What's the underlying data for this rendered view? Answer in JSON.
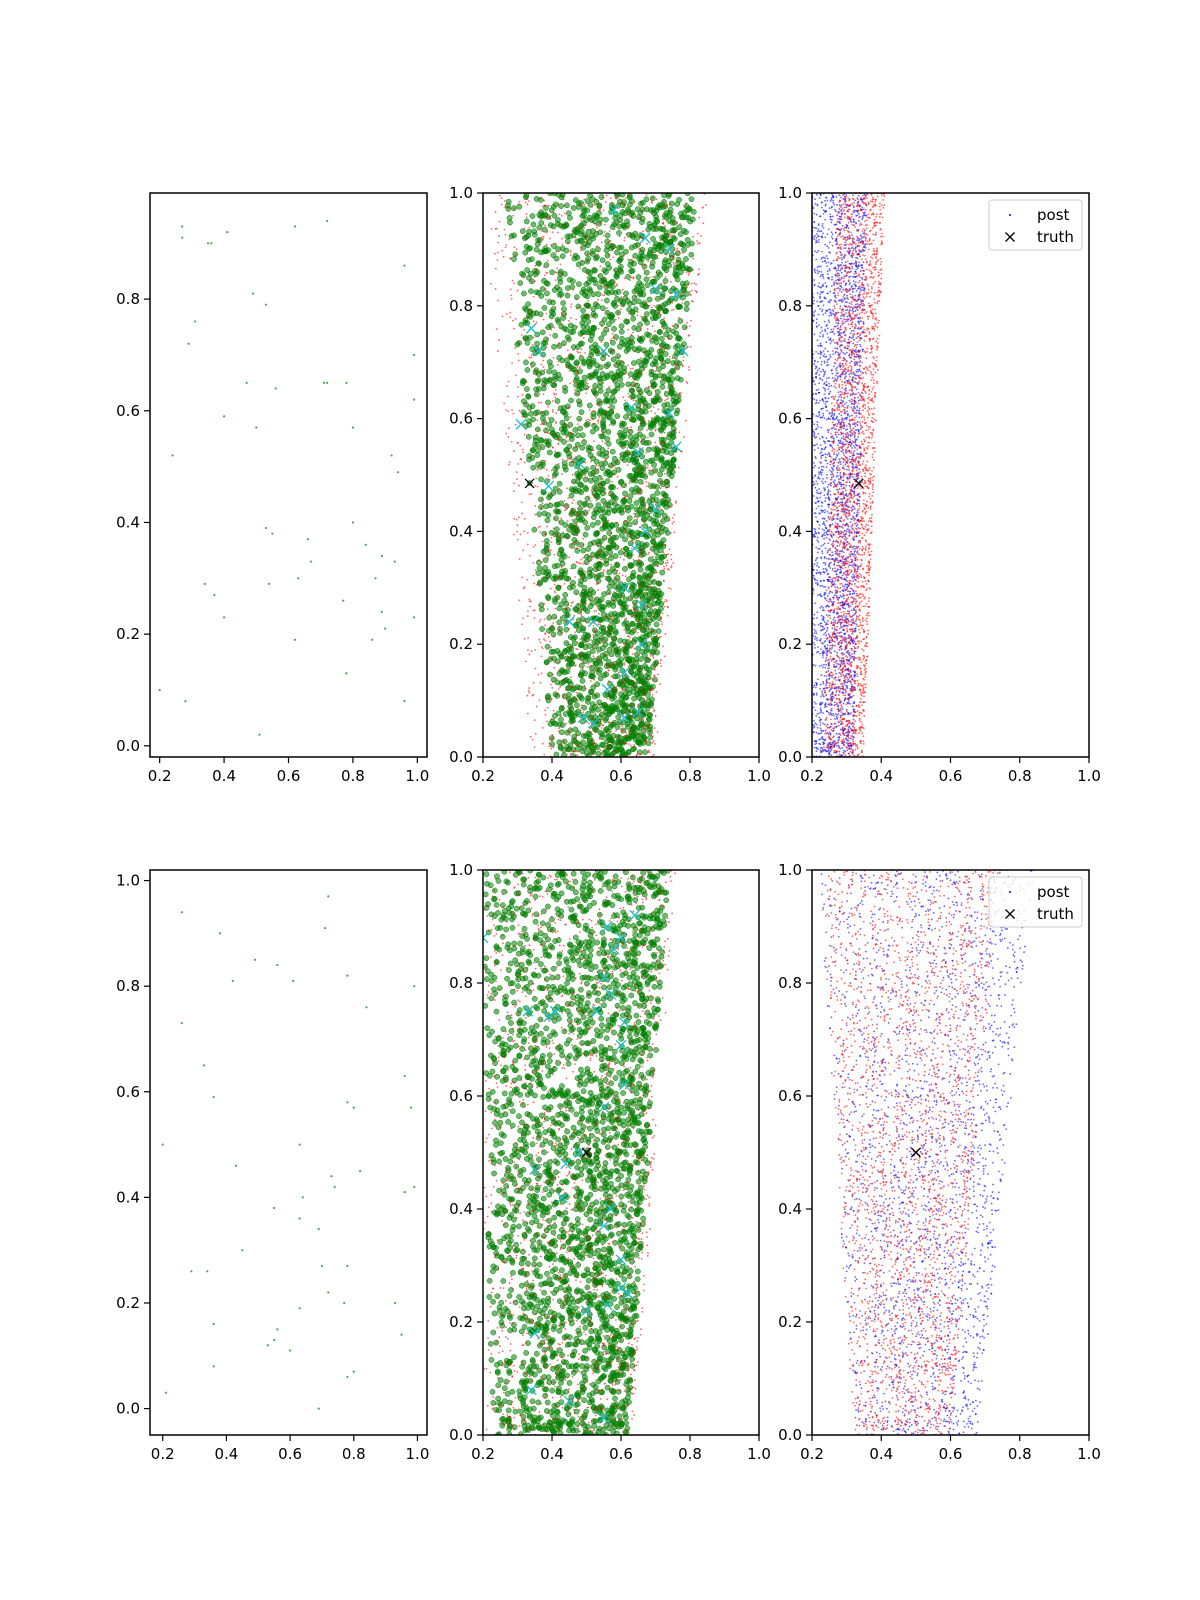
{
  "colors": {
    "green": "#008000",
    "red": "#ff0000",
    "blue": "#0000ff",
    "cyan": "#17becf",
    "black": "#000000"
  },
  "chart_data": [
    {
      "type": "scatter",
      "panel": "top-left",
      "xlim": [
        0.17,
        1.03
      ],
      "ylim": [
        -0.02,
        0.99
      ],
      "xticks": [
        "0.2",
        "0.4",
        "0.6",
        "0.8",
        "1.0"
      ],
      "yticks": [
        "0.0",
        "0.2",
        "0.4",
        "0.6",
        "0.8"
      ],
      "series": [
        {
          "color": "green",
          "marker": "dot-tiny",
          "points": [
            [
              0.27,
              0.93
            ],
            [
              0.27,
              0.91
            ],
            [
              0.41,
              0.92
            ],
            [
              0.62,
              0.93
            ],
            [
              0.72,
              0.94
            ],
            [
              0.35,
              0.9
            ],
            [
              0.36,
              0.9
            ],
            [
              0.96,
              0.86
            ],
            [
              0.49,
              0.81
            ],
            [
              0.53,
              0.79
            ],
            [
              0.31,
              0.76
            ],
            [
              0.29,
              0.72
            ],
            [
              0.99,
              0.7
            ],
            [
              0.47,
              0.65
            ],
            [
              0.56,
              0.64
            ],
            [
              0.71,
              0.65
            ],
            [
              0.72,
              0.65
            ],
            [
              0.78,
              0.65
            ],
            [
              0.99,
              0.62
            ],
            [
              0.4,
              0.59
            ],
            [
              0.5,
              0.57
            ],
            [
              0.8,
              0.57
            ],
            [
              0.24,
              0.52
            ],
            [
              0.92,
              0.52
            ],
            [
              0.94,
              0.49
            ],
            [
              0.8,
              0.4
            ],
            [
              0.53,
              0.39
            ],
            [
              0.55,
              0.38
            ],
            [
              0.66,
              0.37
            ],
            [
              0.84,
              0.36
            ],
            [
              0.89,
              0.34
            ],
            [
              0.93,
              0.33
            ],
            [
              0.67,
              0.33
            ],
            [
              0.63,
              0.3
            ],
            [
              0.87,
              0.3
            ],
            [
              0.34,
              0.29
            ],
            [
              0.54,
              0.29
            ],
            [
              0.37,
              0.27
            ],
            [
              0.77,
              0.26
            ],
            [
              0.4,
              0.23
            ],
            [
              0.99,
              0.23
            ],
            [
              0.89,
              0.24
            ],
            [
              0.9,
              0.21
            ],
            [
              0.86,
              0.19
            ],
            [
              0.62,
              0.19
            ],
            [
              0.78,
              0.13
            ],
            [
              0.2,
              0.1
            ],
            [
              0.28,
              0.08
            ],
            [
              0.96,
              0.08
            ],
            [
              0.51,
              0.02
            ]
          ]
        }
      ]
    },
    {
      "type": "scatter",
      "panel": "top-middle",
      "xlim": [
        0.2,
        1.0
      ],
      "ylim": [
        0.0,
        1.0
      ],
      "xticks": [
        "0.2",
        "0.4",
        "0.6",
        "0.8",
        "1.0"
      ],
      "yticks": [
        "0.0",
        "0.2",
        "0.4",
        "0.6",
        "0.8",
        "1.0"
      ],
      "cloud": {
        "green": {
          "count": 2600,
          "left_top": 0.26,
          "left_bottom": 0.4,
          "right_top": 0.82,
          "right_bottom": 0.68
        },
        "red": {
          "count": 1800,
          "left_top": 0.2,
          "left_bottom": 0.34,
          "right_top": 0.85,
          "right_bottom": 0.7
        }
      },
      "series": [
        {
          "color": "cyan",
          "marker": "x",
          "points": [
            [
              0.58,
              0.97
            ],
            [
              0.67,
              0.92
            ],
            [
              0.74,
              0.9
            ],
            [
              0.34,
              0.76
            ],
            [
              0.36,
              0.72
            ],
            [
              0.55,
              0.72
            ],
            [
              0.78,
              0.72
            ],
            [
              0.7,
              0.83
            ],
            [
              0.76,
              0.82
            ],
            [
              0.63,
              0.62
            ],
            [
              0.74,
              0.61
            ],
            [
              0.31,
              0.59
            ],
            [
              0.65,
              0.54
            ],
            [
              0.76,
              0.55
            ],
            [
              0.48,
              0.52
            ],
            [
              0.39,
              0.48
            ],
            [
              0.7,
              0.44
            ],
            [
              0.67,
              0.4
            ],
            [
              0.64,
              0.37
            ],
            [
              0.61,
              0.3
            ],
            [
              0.66,
              0.27
            ],
            [
              0.45,
              0.24
            ],
            [
              0.52,
              0.24
            ],
            [
              0.66,
              0.2
            ],
            [
              0.61,
              0.15
            ],
            [
              0.56,
              0.12
            ],
            [
              0.49,
              0.07
            ],
            [
              0.61,
              0.07
            ],
            [
              0.65,
              0.08
            ],
            [
              0.52,
              0.06
            ]
          ]
        },
        {
          "color": "black",
          "marker": "x",
          "points": [
            [
              0.335,
              0.485
            ]
          ]
        }
      ]
    },
    {
      "type": "scatter",
      "panel": "top-right",
      "xlim": [
        0.2,
        1.0
      ],
      "ylim": [
        0.0,
        1.0
      ],
      "xticks": [
        "0.2",
        "0.4",
        "0.6",
        "0.8",
        "1.0"
      ],
      "yticks": [
        "0.0",
        "0.2",
        "0.4",
        "0.6",
        "0.8",
        "1.0"
      ],
      "legend": {
        "location": "upper right",
        "entries": [
          "post",
          "truth"
        ]
      },
      "cloud": {
        "blue": {
          "count": 2800,
          "left_top": 0.2,
          "left_bottom": 0.2,
          "right_top": 0.36,
          "right_bottom": 0.32
        },
        "red": {
          "count": 2400,
          "left_top": 0.27,
          "left_bottom": 0.23,
          "right_top": 0.41,
          "right_bottom": 0.35
        }
      },
      "series": [
        {
          "color": "black",
          "marker": "x",
          "points": [
            [
              0.335,
              0.485
            ]
          ]
        }
      ]
    },
    {
      "type": "scatter",
      "panel": "bottom-left",
      "xlim": [
        0.16,
        1.03
      ],
      "ylim": [
        -0.05,
        1.02
      ],
      "xticks": [
        "0.2",
        "0.4",
        "0.6",
        "0.8",
        "1.0"
      ],
      "yticks": [
        "0.0",
        "0.2",
        "0.4",
        "0.6",
        "0.8",
        "1.0"
      ],
      "series": [
        {
          "color": "green",
          "marker": "dot-tiny",
          "points": [
            [
              0.26,
              0.94
            ],
            [
              0.38,
              0.9
            ],
            [
              0.49,
              0.85
            ],
            [
              0.56,
              0.84
            ],
            [
              0.72,
              0.97
            ],
            [
              0.71,
              0.91
            ],
            [
              0.42,
              0.81
            ],
            [
              0.61,
              0.81
            ],
            [
              0.78,
              0.82
            ],
            [
              0.99,
              0.8
            ],
            [
              0.84,
              0.76
            ],
            [
              0.26,
              0.73
            ],
            [
              0.33,
              0.65
            ],
            [
              0.36,
              0.59
            ],
            [
              0.96,
              0.63
            ],
            [
              0.78,
              0.58
            ],
            [
              0.8,
              0.57
            ],
            [
              0.98,
              0.57
            ],
            [
              0.2,
              0.5
            ],
            [
              0.63,
              0.5
            ],
            [
              0.43,
              0.46
            ],
            [
              0.82,
              0.45
            ],
            [
              0.73,
              0.44
            ],
            [
              0.74,
              0.42
            ],
            [
              0.99,
              0.42
            ],
            [
              0.96,
              0.41
            ],
            [
              0.55,
              0.38
            ],
            [
              0.64,
              0.4
            ],
            [
              0.63,
              0.36
            ],
            [
              0.69,
              0.34
            ],
            [
              0.45,
              0.3
            ],
            [
              0.7,
              0.27
            ],
            [
              0.78,
              0.27
            ],
            [
              0.29,
              0.26
            ],
            [
              0.34,
              0.26
            ],
            [
              0.72,
              0.22
            ],
            [
              0.77,
              0.2
            ],
            [
              0.63,
              0.19
            ],
            [
              0.93,
              0.2
            ],
            [
              0.36,
              0.16
            ],
            [
              0.56,
              0.15
            ],
            [
              0.53,
              0.12
            ],
            [
              0.55,
              0.13
            ],
            [
              0.6,
              0.11
            ],
            [
              0.95,
              0.14
            ],
            [
              0.8,
              0.07
            ],
            [
              0.78,
              0.06
            ],
            [
              0.36,
              0.08
            ],
            [
              0.21,
              0.03
            ],
            [
              0.69,
              0.0
            ]
          ]
        }
      ]
    },
    {
      "type": "scatter",
      "panel": "bottom-middle",
      "xlim": [
        0.2,
        1.0
      ],
      "ylim": [
        0.0,
        1.0
      ],
      "xticks": [
        "0.2",
        "0.4",
        "0.6",
        "0.8",
        "1.0"
      ],
      "yticks": [
        "0.0",
        "0.2",
        "0.4",
        "0.6",
        "0.8",
        "1.0"
      ],
      "cloud": {
        "green": {
          "count": 2600,
          "left_top": 0.2,
          "left_bottom": 0.22,
          "right_top": 0.74,
          "right_bottom": 0.62
        },
        "red": {
          "count": 1600,
          "left_top": 0.2,
          "left_bottom": 0.2,
          "right_top": 0.76,
          "right_bottom": 0.64
        }
      },
      "series": [
        {
          "color": "cyan",
          "marker": "x",
          "points": [
            [
              0.2,
              0.88
            ],
            [
              0.56,
              0.9
            ],
            [
              0.6,
              0.88
            ],
            [
              0.64,
              0.92
            ],
            [
              0.58,
              0.86
            ],
            [
              0.55,
              0.81
            ],
            [
              0.57,
              0.78
            ],
            [
              0.53,
              0.75
            ],
            [
              0.61,
              0.73
            ],
            [
              0.33,
              0.75
            ],
            [
              0.39,
              0.74
            ],
            [
              0.41,
              0.75
            ],
            [
              0.6,
              0.69
            ],
            [
              0.61,
              0.62
            ],
            [
              0.55,
              0.58
            ],
            [
              0.48,
              0.5
            ],
            [
              0.44,
              0.48
            ],
            [
              0.35,
              0.47
            ],
            [
              0.43,
              0.42
            ],
            [
              0.57,
              0.4
            ],
            [
              0.55,
              0.37
            ],
            [
              0.6,
              0.31
            ],
            [
              0.62,
              0.25
            ],
            [
              0.6,
              0.26
            ],
            [
              0.56,
              0.23
            ],
            [
              0.5,
              0.22
            ],
            [
              0.35,
              0.18
            ],
            [
              0.34,
              0.08
            ],
            [
              0.45,
              0.06
            ],
            [
              0.55,
              0.03
            ]
          ]
        },
        {
          "color": "black",
          "marker": "x",
          "points": [
            [
              0.5,
              0.5
            ]
          ]
        }
      ]
    },
    {
      "type": "scatter",
      "panel": "bottom-right",
      "xlim": [
        0.2,
        1.0
      ],
      "ylim": [
        0.0,
        1.0
      ],
      "xticks": [
        "0.2",
        "0.4",
        "0.6",
        "0.8",
        "1.0"
      ],
      "yticks": [
        "0.0",
        "0.2",
        "0.4",
        "0.6",
        "0.8",
        "1.0"
      ],
      "legend": {
        "location": "upper right",
        "entries": [
          "post",
          "truth"
        ]
      },
      "cloud": {
        "blue": {
          "count": 2400,
          "left_top": 0.22,
          "left_bottom": 0.32,
          "right_top": 0.84,
          "right_bottom": 0.68
        },
        "red": {
          "count": 2400,
          "left_top": 0.22,
          "left_bottom": 0.32,
          "right_top": 0.74,
          "right_bottom": 0.6
        }
      },
      "series": [
        {
          "color": "black",
          "marker": "x",
          "points": [
            [
              0.5,
              0.5
            ]
          ]
        }
      ]
    }
  ]
}
